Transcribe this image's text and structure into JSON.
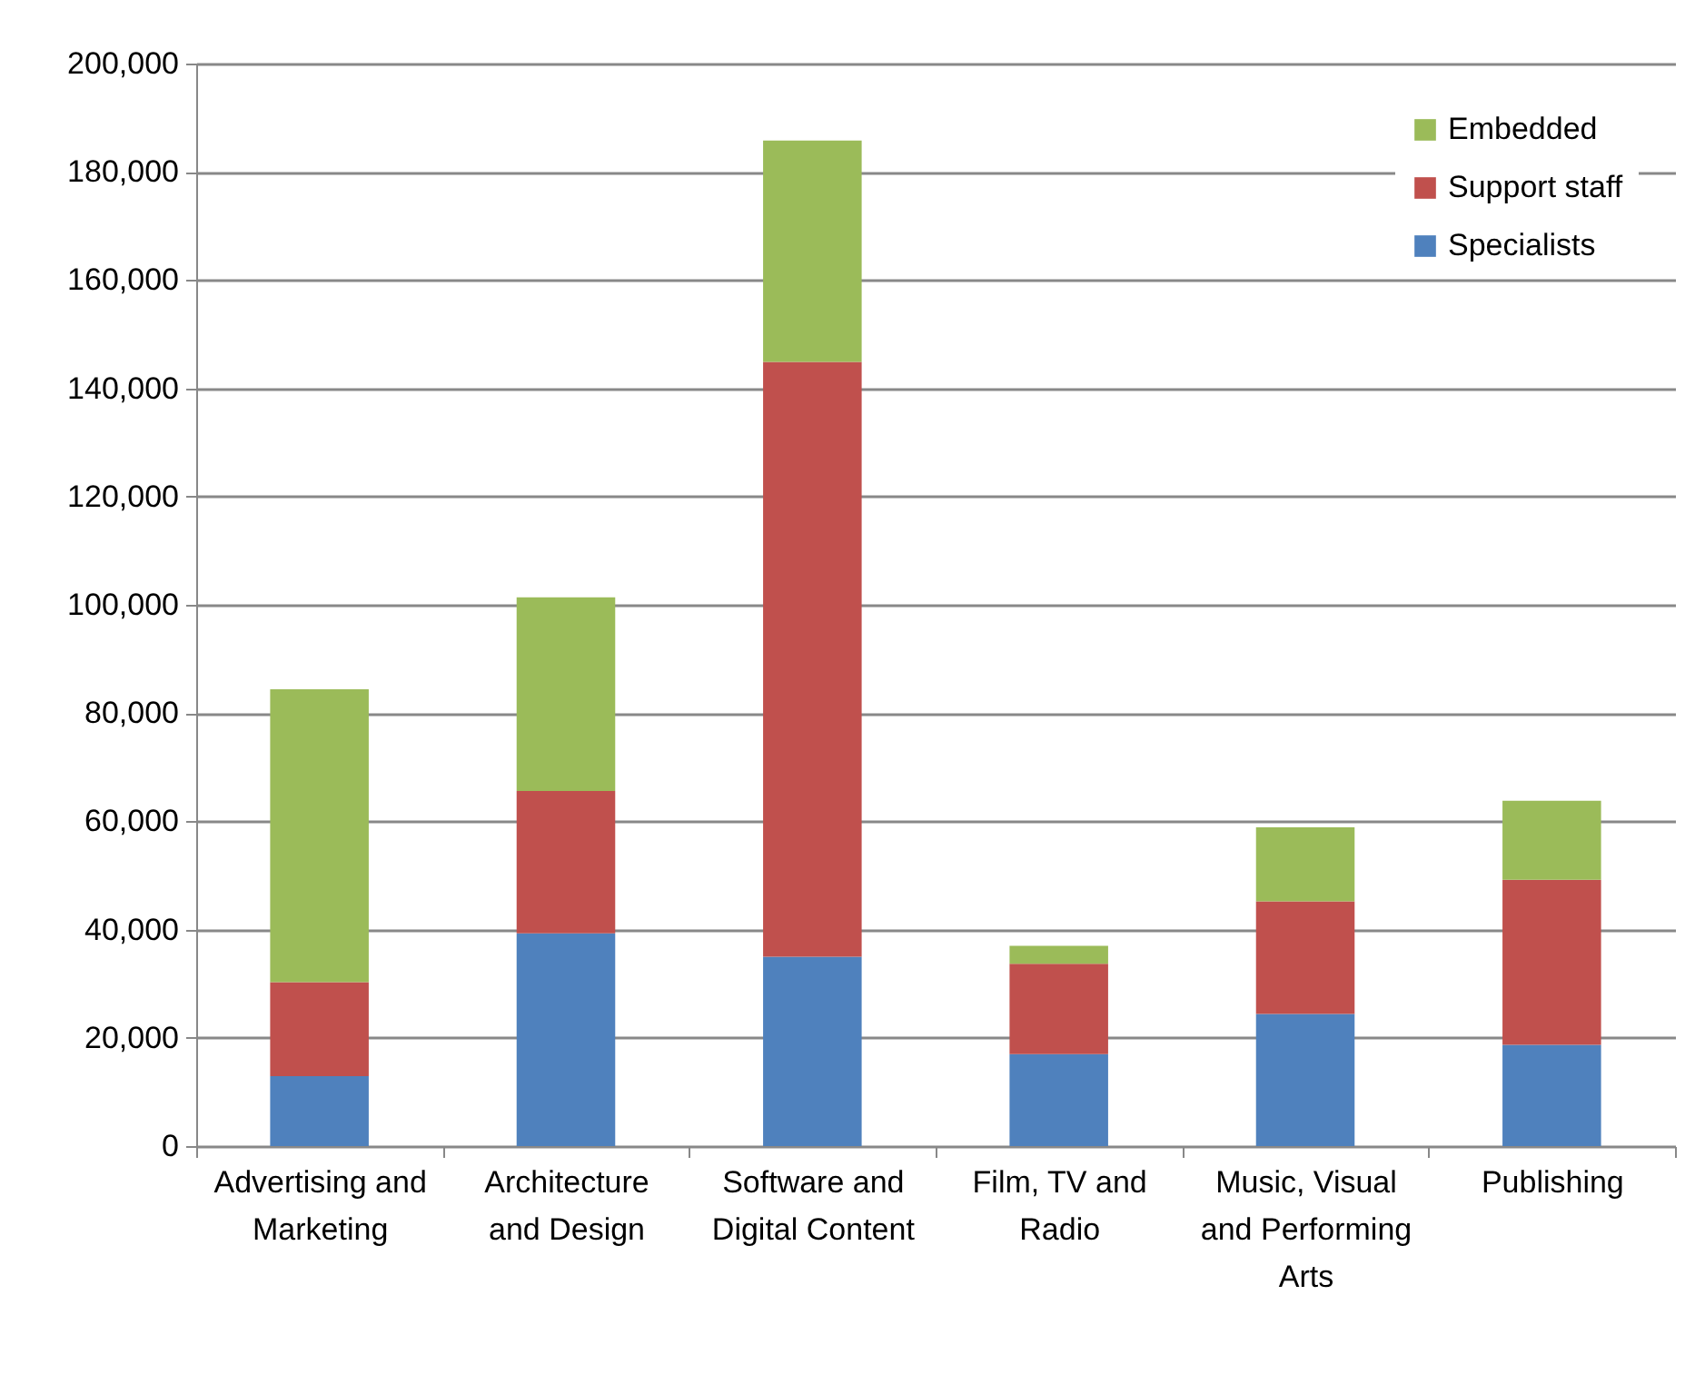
{
  "chart_data": {
    "type": "bar",
    "stacked": true,
    "categories": [
      "Advertising and Marketing",
      "Architecture and Design",
      "Software and Digital Content",
      "Film, TV and Radio",
      "Music, Visual and Performing Arts",
      "Publishing"
    ],
    "series": [
      {
        "name": "Specialists",
        "color": "#4f81bd",
        "values": [
          12900,
          39300,
          35000,
          17000,
          24400,
          18700
        ]
      },
      {
        "name": "Support staff",
        "color": "#c0504d",
        "values": [
          17400,
          26300,
          109900,
          16700,
          20800,
          30500
        ]
      },
      {
        "name": "Embedded",
        "color": "#9bbb59",
        "values": [
          54100,
          35800,
          40900,
          3300,
          13700,
          14600
        ]
      }
    ],
    "ylim": [
      0,
      200000
    ],
    "yticks": [
      0,
      {
        "value": 20000,
        "label": "20,000"
      },
      {
        "value": 40000,
        "label": "40,000"
      },
      {
        "value": 60000,
        "label": "60,000"
      },
      {
        "value": 80000,
        "label": "80,000"
      },
      {
        "value": 100000,
        "label": "100,000"
      },
      {
        "value": 120000,
        "label": "120,000"
      },
      {
        "value": 140000,
        "label": "140,000"
      },
      {
        "value": 160000,
        "label": "160,000"
      },
      {
        "value": 180000,
        "label": "180,000"
      },
      {
        "value": 200000,
        "label": "200,000"
      }
    ],
    "grid": "y",
    "legend": "top right"
  }
}
